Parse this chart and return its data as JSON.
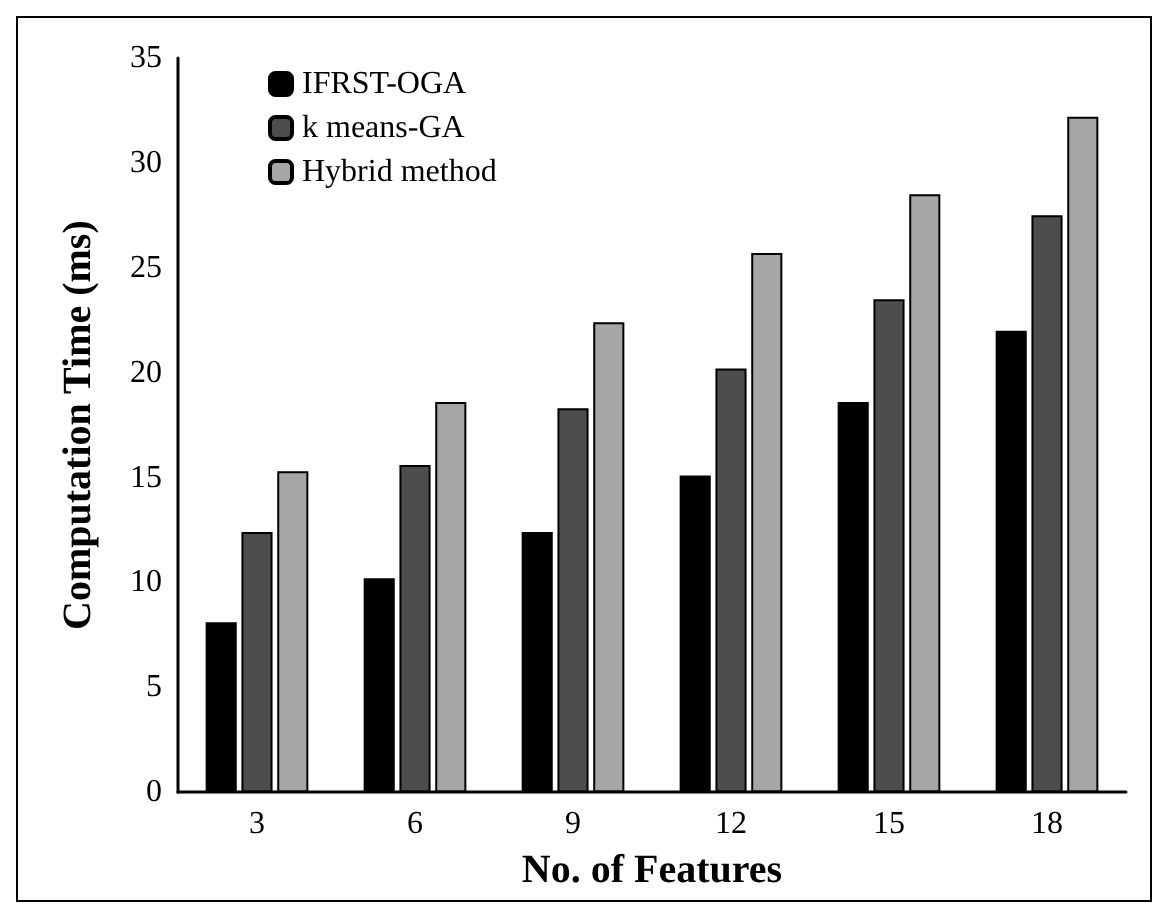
{
  "chart_data": {
    "type": "bar",
    "xlabel": "No. of Features",
    "ylabel": "Computation Time (ms)",
    "categories": [
      "3",
      "6",
      "9",
      "12",
      "15",
      "18"
    ],
    "series": [
      {
        "name": "IFRST-OGA",
        "color": "#000000",
        "values": [
          8.1,
          10.2,
          12.4,
          15.1,
          18.6,
          22.0
        ]
      },
      {
        "name": "k means-GA",
        "color": "#4d4d4d",
        "values": [
          12.4,
          15.6,
          18.3,
          20.2,
          23.5,
          27.5
        ]
      },
      {
        "name": "Hybrid method",
        "color": "#a6a6a6",
        "values": [
          15.3,
          18.6,
          22.4,
          25.7,
          28.5,
          32.2
        ]
      }
    ],
    "ylim": [
      0,
      35
    ],
    "yticks": [
      0,
      5,
      10,
      15,
      20,
      25,
      30,
      35
    ],
    "grid": false,
    "legend": "top left"
  }
}
